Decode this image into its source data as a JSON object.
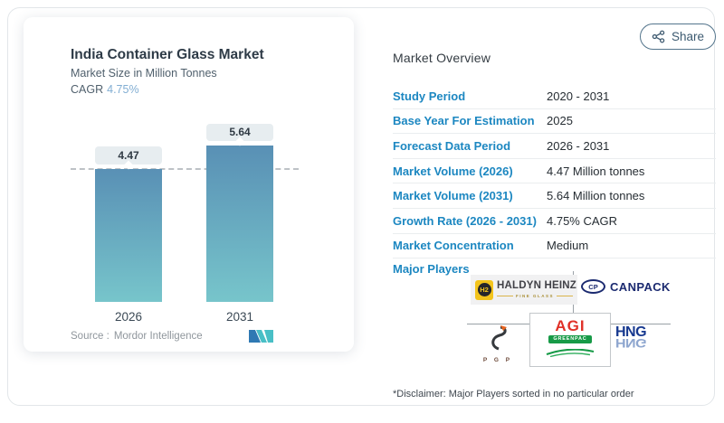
{
  "chart_data": {
    "type": "bar",
    "title": "India Container Glass Market",
    "subtitle": "Market Size in Million Tonnes",
    "categories": [
      "2026",
      "2031"
    ],
    "values": [
      4.47,
      5.64
    ],
    "value_labels": [
      "4.47",
      "5.64"
    ],
    "xlabel": "",
    "ylabel": "Market Size in Million Tonnes",
    "ylim": [
      0,
      5.64
    ],
    "reference_line_value": 4.47,
    "grid": "off",
    "legend": "none",
    "bar_gradient_top": "#5990b5",
    "bar_gradient_bottom": "#77c5cb"
  },
  "chart_card": {
    "title": "India Container Glass Market",
    "subtitle": "Market Size in Million Tonnes",
    "cagr_label": "CAGR",
    "cagr_value": "4.75%",
    "source_label": "Source :",
    "source_value": "Mordor Intelligence"
  },
  "overview": {
    "heading": "Market Overview",
    "share_label": "Share",
    "rows": [
      {
        "label": "Study Period",
        "value": "2020 - 2031"
      },
      {
        "label": "Base Year For Estimation",
        "value": "2025"
      },
      {
        "label": "Forecast Data Period",
        "value": "2026 - 2031"
      },
      {
        "label": "Market Volume (2026)",
        "value": "4.47 Million tonnes"
      },
      {
        "label": "Market Volume (2031)",
        "value": "5.64 Million tonnes"
      },
      {
        "label": "Growth Rate (2026 - 2031)",
        "value": "4.75% CAGR"
      },
      {
        "label": "Market Concentration",
        "value": "Medium"
      }
    ],
    "major_players_label": "Major Players",
    "players": {
      "haldyn": {
        "badge": "H2",
        "name": "HALDYN HEINZ",
        "tagline": "FINE GLASS"
      },
      "canpack": {
        "badge": "CP",
        "name": "CANPACK"
      },
      "pgp": {
        "letters": "P G P"
      },
      "agi": {
        "line1": "AGI",
        "line2": "GREENPAC"
      },
      "hng": {
        "text": "HNG"
      }
    },
    "disclaimer": "*Disclaimer: Major Players sorted in no particular order"
  },
  "colors": {
    "label_blue": "#1c87c1",
    "cagr_blue": "#82aed3",
    "bar_top": "#5990b5",
    "bar_bottom": "#77c5cb",
    "share_border": "#54758c",
    "dashed_line": "#bdc2c6"
  }
}
